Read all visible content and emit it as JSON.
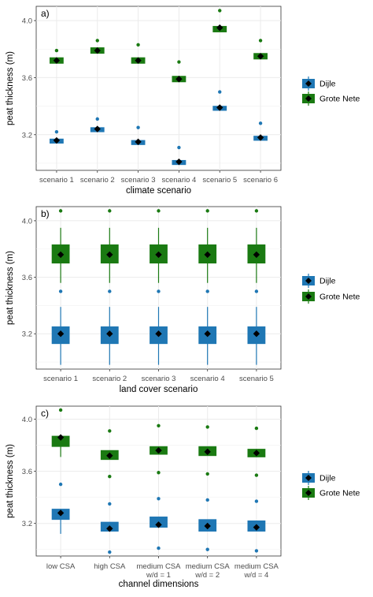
{
  "colors": {
    "Dijle": "#1f77b4",
    "Grote Nete": "#1a7a12",
    "mean_marker": "#000000",
    "panel_bg": "#ffffff",
    "grid": "#ebebeb"
  },
  "legend_entries": [
    "Dijle",
    "Grote Nete"
  ],
  "chart_data": [
    {
      "type": "box",
      "panel_label": "a)",
      "xlabel": "climate scenario",
      "ylabel": "peat thickness (m)",
      "ylim": [
        2.95,
        4.1
      ],
      "yticks": [
        "3.2",
        "3.6",
        "4.0"
      ],
      "ytick_values": [
        3.2,
        3.6,
        4.0
      ],
      "categories": [
        "scenario 1",
        "scenario 2",
        "scenario 3",
        "scenario 4",
        "scenario 5",
        "scenario 6"
      ],
      "legend": "right",
      "series": [
        {
          "name": "Dijle",
          "q1": [
            3.14,
            3.22,
            3.13,
            2.99,
            3.37,
            3.16
          ],
          "q3": [
            3.17,
            3.25,
            3.16,
            3.02,
            3.4,
            3.19
          ],
          "mean": [
            3.16,
            3.24,
            3.15,
            3.01,
            3.39,
            3.18
          ],
          "whisker_low": [
            3.14,
            3.22,
            3.13,
            2.99,
            3.37,
            3.16
          ],
          "whisker_high": [
            3.17,
            3.25,
            3.16,
            3.02,
            3.4,
            3.19
          ],
          "outlier": [
            3.22,
            3.31,
            3.25,
            3.11,
            3.5,
            3.28
          ]
        },
        {
          "name": "Grote Nete",
          "q1": [
            3.7,
            3.77,
            3.7,
            3.57,
            3.92,
            3.73
          ],
          "q3": [
            3.74,
            3.81,
            3.74,
            3.61,
            3.96,
            3.77
          ],
          "mean": [
            3.72,
            3.79,
            3.72,
            3.59,
            3.95,
            3.75
          ],
          "whisker_low": [
            3.7,
            3.77,
            3.7,
            3.57,
            3.92,
            3.73
          ],
          "whisker_high": [
            3.74,
            3.81,
            3.74,
            3.61,
            3.96,
            3.77
          ],
          "outlier": [
            3.79,
            3.86,
            3.83,
            3.71,
            4.07,
            3.86
          ]
        }
      ]
    },
    {
      "type": "box",
      "panel_label": "b)",
      "xlabel": "land cover scenario",
      "ylabel": "peat thickness (m)",
      "ylim": [
        2.95,
        4.1
      ],
      "yticks": [
        "3.2",
        "3.6",
        "4.0"
      ],
      "ytick_values": [
        3.2,
        3.6,
        4.0
      ],
      "categories": [
        "scenario 1",
        "scenario 2",
        "scenario 3",
        "scenario 4",
        "scenario 5"
      ],
      "legend": "right",
      "series": [
        {
          "name": "Dijle",
          "q1": [
            3.13,
            3.13,
            3.13,
            3.13,
            3.13
          ],
          "q3": [
            3.25,
            3.25,
            3.25,
            3.25,
            3.25
          ],
          "mean": [
            3.2,
            3.2,
            3.2,
            3.2,
            3.2
          ],
          "whisker_low": [
            2.98,
            2.98,
            2.98,
            2.98,
            2.98
          ],
          "whisker_high": [
            3.39,
            3.39,
            3.39,
            3.39,
            3.39
          ],
          "outlier": [
            3.5,
            3.5,
            3.5,
            3.5,
            3.5
          ]
        },
        {
          "name": "Grote Nete",
          "q1": [
            3.7,
            3.7,
            3.7,
            3.7,
            3.7
          ],
          "q3": [
            3.83,
            3.83,
            3.83,
            3.83,
            3.83
          ],
          "mean": [
            3.76,
            3.76,
            3.76,
            3.76,
            3.76
          ],
          "whisker_low": [
            3.56,
            3.56,
            3.56,
            3.56,
            3.56
          ],
          "whisker_high": [
            3.95,
            3.95,
            3.95,
            3.95,
            3.95
          ],
          "outlier": [
            4.07,
            4.07,
            4.07,
            4.07,
            4.07
          ]
        }
      ]
    },
    {
      "type": "box",
      "panel_label": "c)",
      "xlabel": "channel dimensions",
      "ylabel": "peat thickness (m)",
      "ylim": [
        2.95,
        4.1
      ],
      "yticks": [
        "3.2",
        "3.6",
        "4.0"
      ],
      "ytick_values": [
        3.2,
        3.6,
        4.0
      ],
      "categories": [
        "low CSA",
        "high CSA",
        "medium CSA\nw/d = 1",
        "medium CSA\nw/d = 2",
        "medium CSA\nw/d = 4"
      ],
      "legend": "right",
      "series": [
        {
          "name": "Dijle",
          "q1": [
            3.23,
            3.14,
            3.17,
            3.14,
            3.14
          ],
          "q3": [
            3.31,
            3.21,
            3.25,
            3.23,
            3.22
          ],
          "mean": [
            3.28,
            3.16,
            3.19,
            3.18,
            3.17
          ],
          "whisker_low": [
            3.12,
            3.14,
            3.17,
            3.14,
            3.14
          ],
          "whisker_high": [
            3.31,
            3.21,
            3.25,
            3.23,
            3.22
          ],
          "outlier_low": [
            null,
            2.98,
            3.01,
            3.0,
            2.99
          ],
          "outlier_high": [
            3.5,
            3.35,
            3.39,
            3.38,
            3.37
          ]
        },
        {
          "name": "Grote Nete",
          "q1": [
            3.79,
            3.69,
            3.73,
            3.72,
            3.71
          ],
          "q3": [
            3.87,
            3.76,
            3.79,
            3.79,
            3.77
          ],
          "mean": [
            3.86,
            3.72,
            3.76,
            3.75,
            3.74
          ],
          "whisker_low": [
            3.71,
            3.69,
            3.73,
            3.72,
            3.71
          ],
          "whisker_high": [
            3.87,
            3.76,
            3.79,
            3.79,
            3.77
          ],
          "outlier_low": [
            null,
            3.56,
            3.59,
            3.58,
            3.57
          ],
          "outlier_high": [
            4.07,
            3.91,
            3.95,
            3.94,
            3.93
          ]
        }
      ]
    }
  ]
}
